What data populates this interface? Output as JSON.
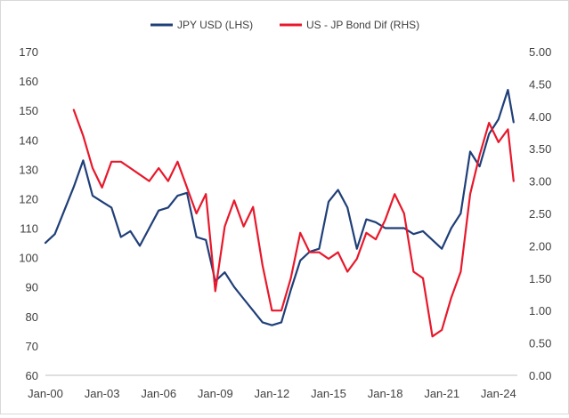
{
  "chart_data": {
    "type": "line",
    "title": "",
    "xlabel": "",
    "ylabel": "",
    "y2label": "",
    "x_ticks": [
      "Jan-00",
      "Jan-03",
      "Jan-06",
      "Jan-09",
      "Jan-12",
      "Jan-15",
      "Jan-18",
      "Jan-21",
      "Jan-24"
    ],
    "x_range": [
      2000.0,
      2025.0
    ],
    "y_left_ticks": [
      "60",
      "70",
      "80",
      "90",
      "100",
      "110",
      "120",
      "130",
      "140",
      "150",
      "160",
      "170"
    ],
    "y_left_range": [
      60,
      170
    ],
    "y_right_ticks": [
      "0.00",
      "0.50",
      "1.00",
      "1.50",
      "2.00",
      "2.50",
      "3.00",
      "3.50",
      "4.00",
      "4.50",
      "5.00"
    ],
    "y_right_range": [
      0,
      5
    ],
    "grid": false,
    "legend_position": "top-center",
    "series": [
      {
        "name": "JPY USD (LHS)",
        "axis": "left",
        "color": "#1f3f78",
        "x": [
          2000.0,
          2000.5,
          2001.0,
          2001.5,
          2002.0,
          2002.5,
          2003.0,
          2003.5,
          2004.0,
          2004.5,
          2005.0,
          2005.5,
          2006.0,
          2006.5,
          2007.0,
          2007.5,
          2008.0,
          2008.5,
          2009.0,
          2009.5,
          2010.0,
          2010.5,
          2011.0,
          2011.5,
          2012.0,
          2012.5,
          2013.0,
          2013.5,
          2014.0,
          2014.5,
          2015.0,
          2015.5,
          2016.0,
          2016.5,
          2017.0,
          2017.5,
          2018.0,
          2018.5,
          2019.0,
          2019.5,
          2020.0,
          2020.5,
          2021.0,
          2021.5,
          2022.0,
          2022.5,
          2023.0,
          2023.5,
          2024.0,
          2024.5,
          2024.8
        ],
        "values": [
          105,
          108,
          116,
          124,
          133,
          121,
          119,
          117,
          107,
          109,
          104,
          110,
          116,
          117,
          121,
          122,
          107,
          106,
          92,
          95,
          90,
          86,
          82,
          78,
          77,
          78,
          89,
          99,
          102,
          103,
          119,
          123,
          117,
          103,
          113,
          112,
          110,
          110,
          110,
          108,
          109,
          106,
          103,
          110,
          115,
          136,
          131,
          142,
          147,
          157,
          146
        ]
      },
      {
        "name": "US - JP Bond Dif (RHS)",
        "axis": "right",
        "color": "#e8182b",
        "x": [
          2000.0,
          2000.5,
          2001.0,
          2001.5,
          2002.0,
          2002.5,
          2003.0,
          2003.5,
          2004.0,
          2004.5,
          2005.0,
          2005.5,
          2006.0,
          2006.5,
          2007.0,
          2007.5,
          2008.0,
          2008.5,
          2009.0,
          2009.5,
          2010.0,
          2010.5,
          2011.0,
          2011.5,
          2012.0,
          2012.5,
          2013.0,
          2013.5,
          2014.0,
          2014.5,
          2015.0,
          2015.5,
          2016.0,
          2016.5,
          2017.0,
          2017.5,
          2018.0,
          2018.5,
          2019.0,
          2019.5,
          2020.0,
          2020.5,
          2021.0,
          2021.5,
          2022.0,
          2022.5,
          2023.0,
          2023.5,
          2024.0,
          2024.5,
          2024.8
        ],
        "values": [
          null,
          null,
          null,
          4.1,
          3.7,
          3.2,
          2.9,
          3.3,
          3.3,
          3.2,
          3.1,
          3.0,
          3.2,
          3.0,
          3.3,
          2.9,
          2.5,
          2.8,
          1.3,
          2.3,
          2.7,
          2.3,
          2.6,
          1.7,
          1.0,
          1.0,
          1.5,
          2.2,
          1.9,
          1.9,
          1.8,
          1.9,
          1.6,
          1.8,
          2.2,
          2.1,
          2.4,
          2.8,
          2.5,
          1.6,
          1.5,
          0.6,
          0.7,
          1.2,
          1.6,
          2.8,
          3.4,
          3.9,
          3.6,
          3.8,
          3.0
        ]
      }
    ]
  }
}
